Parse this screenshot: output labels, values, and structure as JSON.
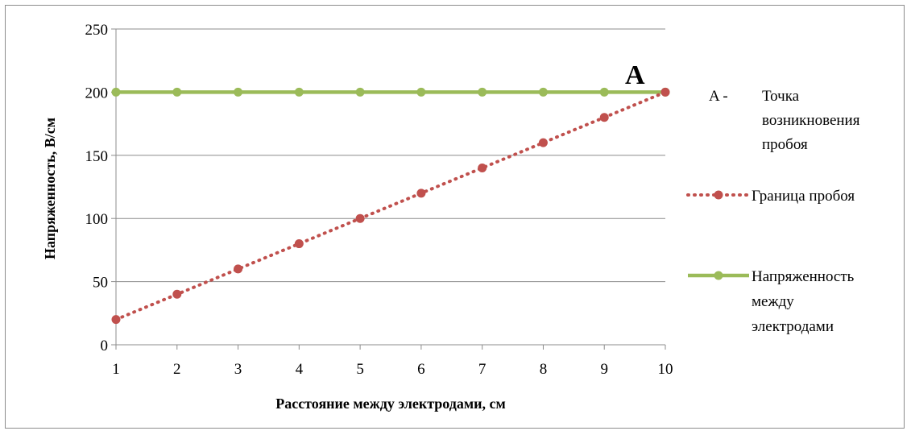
{
  "chart_data": {
    "type": "line",
    "xlabel": "Расстояние между электродами, см",
    "ylabel": "Напряженность, В/см",
    "x": [
      1,
      2,
      3,
      4,
      5,
      6,
      7,
      8,
      9,
      10
    ],
    "xlim": [
      1,
      10
    ],
    "ylim": [
      0,
      250
    ],
    "y_ticks": [
      0,
      50,
      100,
      150,
      200,
      250
    ],
    "grid": "horizontal",
    "legend_position": "right",
    "series": [
      {
        "name": "Граница пробоя",
        "values": [
          20,
          40,
          60,
          80,
          100,
          120,
          140,
          160,
          180,
          200
        ],
        "color": "#c0504d",
        "line_style": "dotted"
      },
      {
        "name": "Напряженность между электродами",
        "values": [
          200,
          200,
          200,
          200,
          200,
          200,
          200,
          200,
          200,
          200
        ],
        "color": "#9bbb59",
        "line_style": "solid"
      }
    ],
    "annotation": {
      "label": "A",
      "x": 10,
      "y": 200,
      "legend_prefix": "A -",
      "legend_text": "Точка возникновения пробоя"
    }
  }
}
